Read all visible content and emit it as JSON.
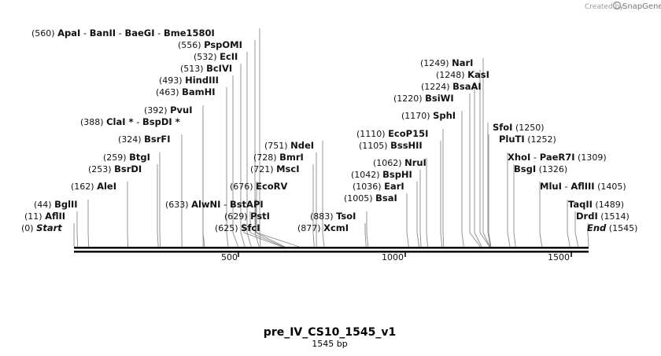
{
  "branding": {
    "created_by": "Created by",
    "product": "SnapGene"
  },
  "map": {
    "name": "pre_IV_CS10_1545_v1",
    "length_label": "1545 bp",
    "length": 1545,
    "ticks": [
      "500",
      "1000",
      "1500"
    ]
  },
  "features": [
    {
      "pos": "(560)",
      "name": "ApaI",
      "sep": "-",
      "name2": "BanII",
      "sep2": "-",
      "name3": "BaeGI",
      "sep3": "-",
      "name4": "Bme1580I",
      "site": 560
    },
    {
      "pos": "(556)",
      "name": "PspOMI",
      "site": 556
    },
    {
      "pos": "(532)",
      "name": "EcII",
      "site": 532
    },
    {
      "pos": "(513)",
      "name": "BcIVI",
      "site": 513
    },
    {
      "pos": "(493)",
      "name": "HindIII",
      "site": 493
    },
    {
      "pos": "(463)",
      "name": "BamHI",
      "site": 463
    },
    {
      "pos": "(392)",
      "name": "PvuI",
      "site": 392
    },
    {
      "pos": "(388)",
      "name": "ClaI *",
      "sep": "-",
      "name2": "BspDI *",
      "site": 388
    },
    {
      "pos": "(324)",
      "name": "BsrFI",
      "site": 324
    },
    {
      "pos": "(259)",
      "name": "BtgI",
      "site": 259
    },
    {
      "pos": "(253)",
      "name": "BsrDI",
      "site": 253
    },
    {
      "pos": "(162)",
      "name": "AleI",
      "site": 162
    },
    {
      "pos": "(44)",
      "name": "BglII",
      "site": 44
    },
    {
      "pos": "(11)",
      "name": "AflII",
      "site": 11
    },
    {
      "pos": "(0)",
      "name": "Start",
      "site": 0,
      "italic": true
    },
    {
      "pos": "(633)",
      "name": "AlwNI",
      "sep": "-",
      "name2": "BstAPI",
      "site": 633
    },
    {
      "pos": "(676)",
      "name": "EcoRV",
      "site": 676
    },
    {
      "pos": "(629)",
      "name": "PstI",
      "site": 629
    },
    {
      "pos": "(625)",
      "name": "SfcI",
      "site": 625
    },
    {
      "pos": "(751)",
      "name": "NdeI",
      "site": 751
    },
    {
      "pos": "(728)",
      "name": "BmrI",
      "site": 728
    },
    {
      "pos": "(721)",
      "name": "MscI",
      "site": 721
    },
    {
      "pos": "(883)",
      "name": "TsoI",
      "site": 883
    },
    {
      "pos": "(877)",
      "name": "XcmI",
      "site": 877
    },
    {
      "pos": "(1249)",
      "name": "NarI",
      "site": 1249
    },
    {
      "pos": "(1248)",
      "name": "KasI",
      "site": 1248
    },
    {
      "pos": "(1224)",
      "name": "BsaAI",
      "site": 1224
    },
    {
      "pos": "(1220)",
      "name": "BsiWI",
      "site": 1220
    },
    {
      "pos": "(1170)",
      "name": "SphI",
      "site": 1170
    },
    {
      "pos": "(1110)",
      "name": "EcoP15I",
      "site": 1110
    },
    {
      "pos": "(1105)",
      "name": "BssHII",
      "site": 1105
    },
    {
      "pos": "(1062)",
      "name": "NruI",
      "site": 1062
    },
    {
      "pos": "(1042)",
      "name": "BspHI",
      "site": 1042
    },
    {
      "pos": "(1036)",
      "name": "EarI",
      "site": 1036
    },
    {
      "pos": "(1005)",
      "name": "BsaI",
      "site": 1005
    },
    {
      "pos": "(1250)",
      "name": "SfoI",
      "site": 1250,
      "pos_after": true
    },
    {
      "pos": "(1252)",
      "name": "PluTI",
      "site": 1252,
      "pos_after": true
    },
    {
      "pos": "(1309)",
      "name": "XhoI",
      "sep": "-",
      "name2": "PaeR7I",
      "site": 1309,
      "pos_after": true
    },
    {
      "pos": "(1326)",
      "name": "BsgI",
      "site": 1326,
      "pos_after": true
    },
    {
      "pos": "(1405)",
      "name": "MluI",
      "sep": "-",
      "name2": "AflIII",
      "site": 1405,
      "pos_after": true
    },
    {
      "pos": "(1489)",
      "name": "TaqII",
      "site": 1489,
      "pos_after": true
    },
    {
      "pos": "(1514)",
      "name": "DrdI",
      "site": 1514,
      "pos_after": true
    },
    {
      "pos": "(1545)",
      "name": "End",
      "site": 1545,
      "italic": true,
      "pos_after": true
    }
  ]
}
